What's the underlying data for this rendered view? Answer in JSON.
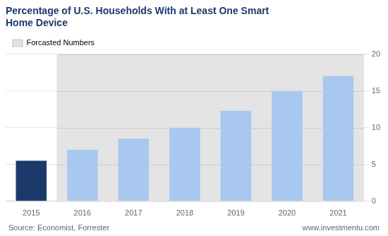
{
  "chart_data": {
    "type": "bar",
    "title": "Percentage of U.S. Households With at Least One Smart\nHome Device",
    "categories": [
      "2015",
      "2016",
      "2017",
      "2018",
      "2019",
      "2020",
      "2021"
    ],
    "values": [
      5.5,
      7.0,
      8.5,
      10.0,
      12.3,
      15.0,
      17.0
    ],
    "colors": [
      "#1b3a6b",
      "#a8c8f0",
      "#a8c8f0",
      "#a8c8f0",
      "#a8c8f0",
      "#a8c8f0",
      "#a8c8f0"
    ],
    "ylim": [
      0,
      20
    ],
    "yticks": [
      0,
      5,
      10,
      15,
      20
    ],
    "grid": true,
    "legend": "upper left",
    "annotations": [
      {
        "text": "Forcasted Numbers",
        "from": "2016",
        "to": "2021",
        "color": "#e4e4e4"
      },
      {
        "text": "Source: Economist, Forrester",
        "position": "bottom left"
      },
      {
        "text": "www.investmentu.com",
        "position": "bottom right"
      }
    ]
  }
}
